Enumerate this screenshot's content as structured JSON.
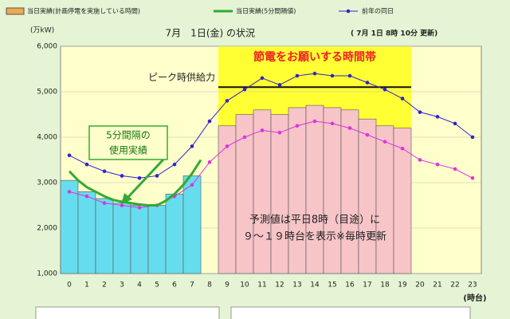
{
  "chart_data": {
    "type": "bar",
    "title": "7月　1日(金) の状況",
    "subtitle": "( 7月 1日 8時 10分 更新)",
    "y_label": "(万kW)",
    "x_label": "(時台)",
    "categories": [
      0,
      1,
      2,
      3,
      4,
      5,
      6,
      7,
      8,
      9,
      10,
      11,
      12,
      13,
      14,
      15,
      16,
      17,
      18,
      19,
      20,
      21,
      22,
      23
    ],
    "xlim": [
      -0.5,
      23.5
    ],
    "ylim": [
      1000,
      6000
    ],
    "yticks": [
      {
        "value": 1000,
        "label": "1,000"
      },
      {
        "value": 2000,
        "label": "2,000"
      },
      {
        "value": 3000,
        "label": "3,000"
      },
      {
        "value": 4000,
        "label": "4,000"
      },
      {
        "value": 5000,
        "label": "5,000"
      },
      {
        "value": 6000,
        "label": "6,000"
      }
    ],
    "grid": true,
    "legend_extra": {
      "name": "当日実績(計画停電を実施している時間)",
      "color": "#f0a850"
    },
    "bar_series": [
      {
        "color": "#66ddee",
        "values": [
          3050,
          2800,
          2650,
          2550,
          2500,
          2500,
          2750,
          3150,
          null,
          null,
          null,
          null,
          null,
          null,
          null,
          null,
          null,
          null,
          null,
          null,
          null,
          null,
          null,
          null
        ]
      },
      {
        "color": "#f7c4c8",
        "values": [
          null,
          null,
          null,
          null,
          null,
          null,
          null,
          null,
          null,
          4250,
          4500,
          4600,
          4500,
          4650,
          4700,
          4650,
          4600,
          4400,
          4250,
          4200,
          null,
          null,
          null,
          null
        ]
      }
    ],
    "five_min": {
      "name": "当日実績(5分間隔値)",
      "color": "#33aa33",
      "x": [
        0,
        0.5,
        1,
        1.5,
        2,
        2.5,
        3,
        3.5,
        4,
        4.5,
        5,
        5.5,
        6,
        6.5,
        7,
        7.5
      ],
      "values": [
        3250,
        3050,
        2900,
        2800,
        2700,
        2620,
        2580,
        2550,
        2520,
        2500,
        2500,
        2600,
        2750,
        2950,
        3200,
        3500
      ]
    },
    "line_series": [
      {
        "name": "前年の同日",
        "color": "#3322cc",
        "values": [
          3600,
          3400,
          3250,
          3150,
          3100,
          3150,
          3400,
          3800,
          4350,
          4800,
          5050,
          5300,
          5150,
          5350,
          5400,
          5350,
          5350,
          5200,
          5050,
          4850,
          4550,
          4450,
          4300,
          4000
        ]
      },
      {
        "color": "#dd33dd",
        "values": [
          2800,
          2700,
          2550,
          2500,
          2450,
          2500,
          2700,
          2950,
          3450,
          3800,
          4000,
          4150,
          4100,
          4250,
          4350,
          4300,
          4200,
          4050,
          3900,
          3750,
          3500,
          3400,
          3300,
          3100
        ]
      }
    ],
    "highlight": {
      "label": "節電をお願いする時間帯",
      "xlim": [
        8.5,
        19.5
      ],
      "color": "#ffff33"
    },
    "peak_supply": {
      "label": "ピーク時供給力",
      "value": 5100,
      "xlim": [
        8.5,
        19.5
      ]
    },
    "annotations": [
      "5分間隔の",
      "使用実績",
      "予測値は平日8時（目途）に",
      "９～１９時台を表示※毎時更新"
    ]
  }
}
